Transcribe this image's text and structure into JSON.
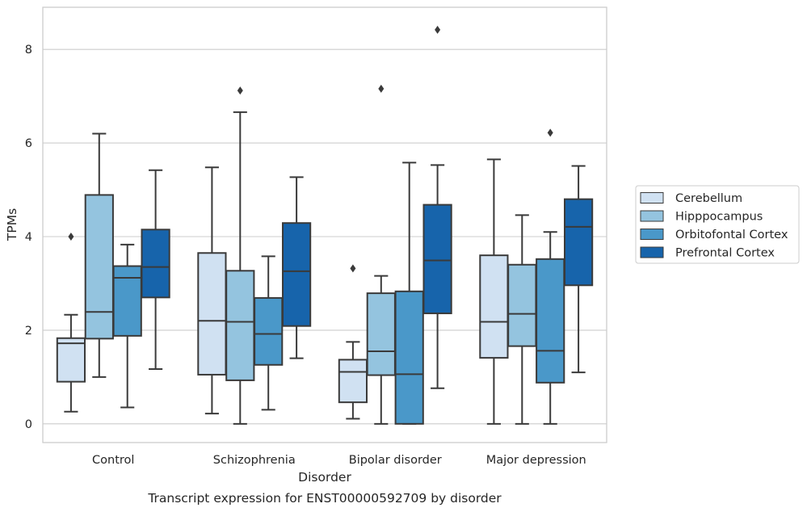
{
  "chart_data": {
    "type": "box",
    "title": "",
    "caption": "Transcript expression for ENST00000592709 by disorder",
    "xlabel": "Disorder",
    "ylabel": "TPMs",
    "ylim": [
      -0.4,
      8.9
    ],
    "yticks": [
      0,
      2,
      4,
      6,
      8
    ],
    "grid": "horizontal",
    "legend_position": "right",
    "categories": [
      "Control",
      "Schizophrenia",
      "Bipolar disorder",
      "Major depression"
    ],
    "series": [
      {
        "name": "Cerebellum",
        "color": "#d0e1f2",
        "boxes": [
          {
            "whislo": 0.26,
            "q1": 0.9,
            "med": 1.72,
            "q3": 1.83,
            "whishi": 2.33,
            "fliers": [
              4.0
            ]
          },
          {
            "whislo": 0.22,
            "q1": 1.05,
            "med": 2.2,
            "q3": 3.65,
            "whishi": 5.48,
            "fliers": []
          },
          {
            "whislo": 0.11,
            "q1": 0.46,
            "med": 1.11,
            "q3": 1.37,
            "whishi": 1.75,
            "fliers": [
              3.32
            ]
          },
          {
            "whislo": 0.0,
            "q1": 1.41,
            "med": 2.18,
            "q3": 3.6,
            "whishi": 5.65,
            "fliers": []
          }
        ]
      },
      {
        "name": "Hipppocampus",
        "color": "#94c4df",
        "boxes": [
          {
            "whislo": 1.0,
            "q1": 1.82,
            "med": 2.39,
            "q3": 4.89,
            "whishi": 6.2,
            "fliers": []
          },
          {
            "whislo": 0.0,
            "q1": 0.93,
            "med": 2.18,
            "q3": 3.27,
            "whishi": 6.66,
            "fliers": [
              7.12
            ]
          },
          {
            "whislo": 0.0,
            "q1": 1.04,
            "med": 1.55,
            "q3": 2.79,
            "whishi": 3.16,
            "fliers": [
              7.16
            ]
          },
          {
            "whislo": 0.0,
            "q1": 1.66,
            "med": 2.35,
            "q3": 3.4,
            "whishi": 4.46,
            "fliers": []
          }
        ]
      },
      {
        "name": "Orbitofontal Cortex",
        "color": "#4a98c9",
        "boxes": [
          {
            "whislo": 0.35,
            "q1": 1.88,
            "med": 3.12,
            "q3": 3.37,
            "whishi": 3.83,
            "fliers": []
          },
          {
            "whislo": 0.3,
            "q1": 1.26,
            "med": 1.92,
            "q3": 2.69,
            "whishi": 3.58,
            "fliers": []
          },
          {
            "whislo": 0.0,
            "q1": 0.0,
            "med": 1.06,
            "q3": 2.83,
            "whishi": 5.58,
            "fliers": []
          },
          {
            "whislo": 0.0,
            "q1": 0.88,
            "med": 1.56,
            "q3": 3.52,
            "whishi": 4.1,
            "fliers": [
              6.22
            ]
          }
        ]
      },
      {
        "name": "Prefrontal Cortex",
        "color": "#1764ab",
        "boxes": [
          {
            "whislo": 1.17,
            "q1": 2.7,
            "med": 3.35,
            "q3": 4.15,
            "whishi": 5.42,
            "fliers": []
          },
          {
            "whislo": 1.4,
            "q1": 2.09,
            "med": 3.26,
            "q3": 4.29,
            "whishi": 5.27,
            "fliers": []
          },
          {
            "whislo": 0.76,
            "q1": 2.36,
            "med": 3.49,
            "q3": 4.68,
            "whishi": 5.53,
            "fliers": [
              8.42
            ]
          },
          {
            "whislo": 1.1,
            "q1": 2.96,
            "med": 4.21,
            "q3": 4.8,
            "whishi": 5.51,
            "fliers": []
          }
        ]
      }
    ]
  }
}
